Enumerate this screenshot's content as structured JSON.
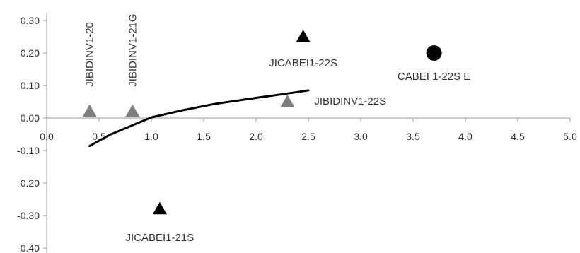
{
  "chart_data": {
    "type": "scatter",
    "title": "",
    "xlabel": "",
    "ylabel": "",
    "xlim": [
      0,
      5
    ],
    "ylim": [
      -0.4,
      0.3
    ],
    "x_ticks": [
      "0.0",
      "0.5",
      "1.0",
      "1.5",
      "2.0",
      "2.5",
      "3.0",
      "3.5",
      "4.0",
      "4.5",
      "5.0"
    ],
    "y_ticks": [
      "0.30",
      "0.20",
      "0.10",
      "0.00",
      "-0.10",
      "-0.20",
      "-0.30",
      "-0.40"
    ],
    "grid": false,
    "legend": "none",
    "points": [
      {
        "label": "JIBIDINV1-20",
        "x": 0.41,
        "y": 0.02,
        "marker": "triangle",
        "color": "#808080"
      },
      {
        "label": "JIBIDINV1-21G",
        "x": 0.82,
        "y": 0.02,
        "marker": "triangle",
        "color": "#808080"
      },
      {
        "label": "JICABEI1-21S",
        "x": 1.08,
        "y": -0.28,
        "marker": "triangle",
        "color": "#000000"
      },
      {
        "label": "JIBIDINV1-22S",
        "x": 2.3,
        "y": 0.05,
        "marker": "triangle",
        "color": "#808080"
      },
      {
        "label": "JICABEI1-22S",
        "x": 2.45,
        "y": 0.25,
        "marker": "triangle",
        "color": "#000000"
      },
      {
        "label": "CABEI 1-22S E",
        "x": 3.7,
        "y": 0.2,
        "marker": "circle",
        "color": "#000000"
      }
    ],
    "trendline": {
      "type": "logarithmic",
      "x": [
        0.41,
        0.6,
        0.8,
        1.0,
        1.3,
        1.6,
        2.0,
        2.4,
        2.5
      ],
      "y": [
        -0.086,
        -0.052,
        -0.025,
        0.002,
        0.024,
        0.043,
        0.062,
        0.08,
        0.085
      ],
      "color": "#000000"
    }
  }
}
